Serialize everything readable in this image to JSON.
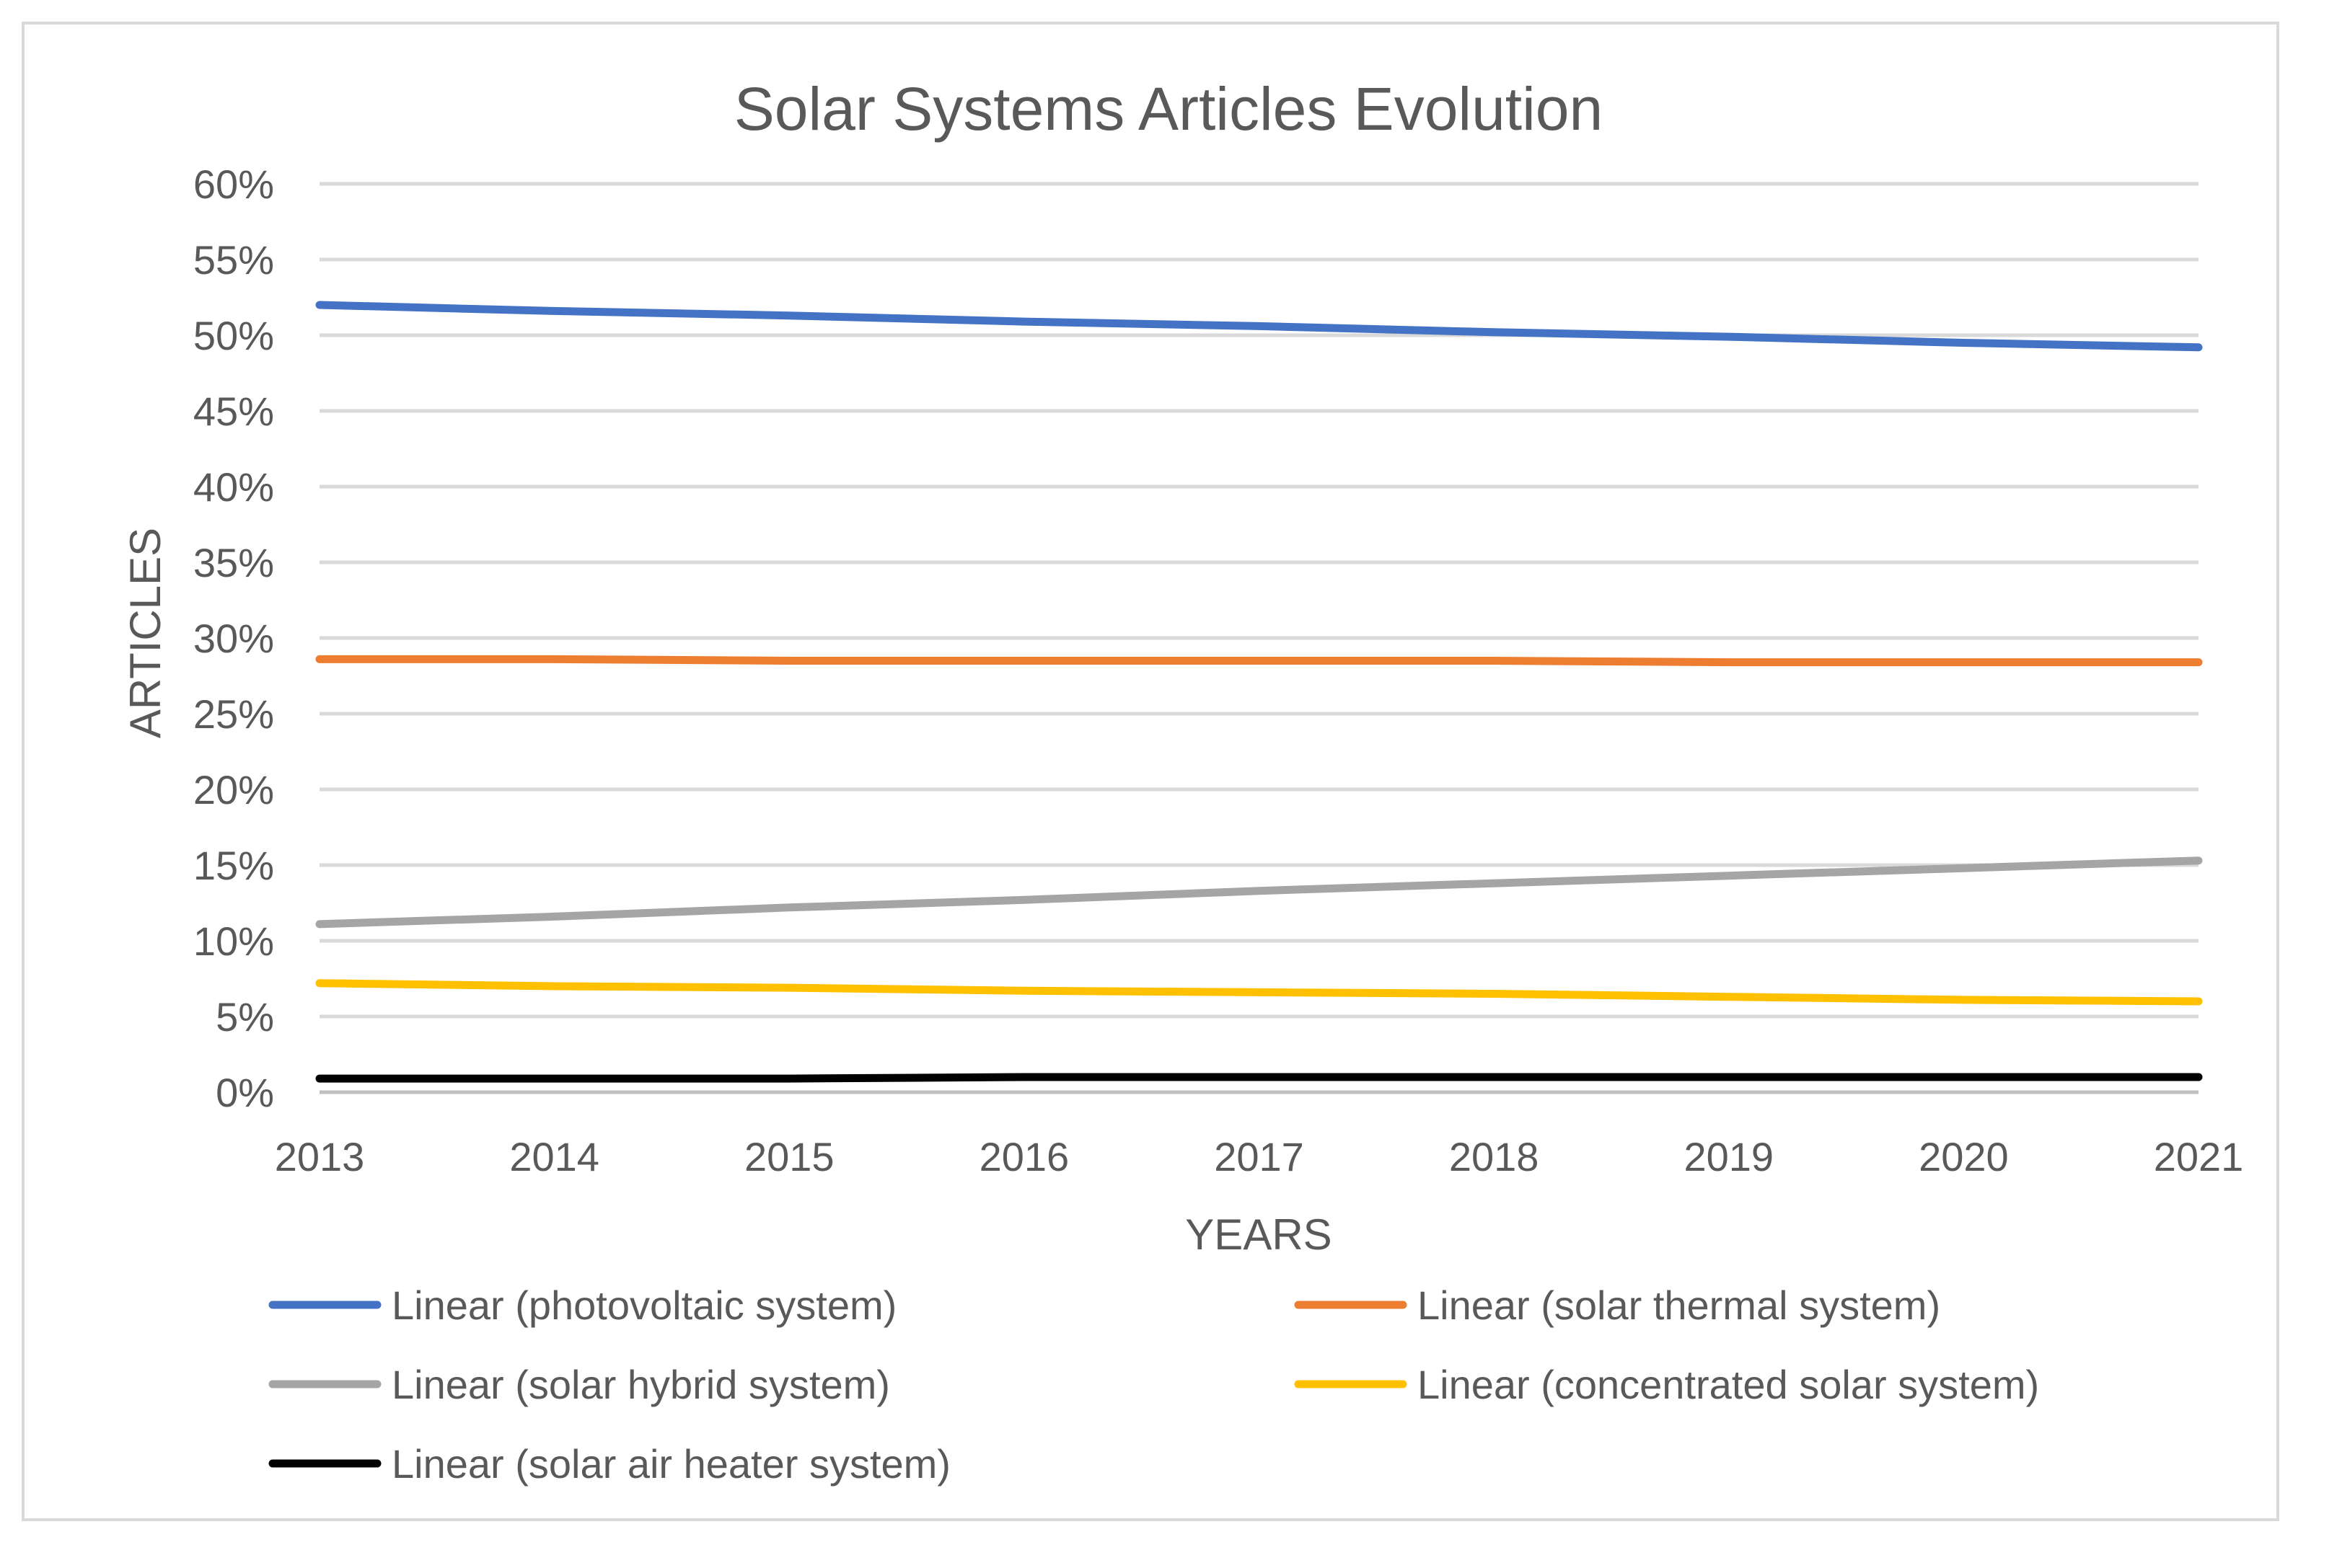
{
  "chart_data": {
    "type": "line",
    "title": "Solar Systems Articles Evolution",
    "xlabel": "YEARS",
    "ylabel": "ARTICLES",
    "categories": [
      "2013",
      "2014",
      "2015",
      "2016",
      "2017",
      "2018",
      "2019",
      "2020",
      "2021"
    ],
    "y_ticks": [
      "0%",
      "5%",
      "10%",
      "15%",
      "20%",
      "25%",
      "30%",
      "35%",
      "40%",
      "45%",
      "50%",
      "55%",
      "60%"
    ],
    "ylim": [
      0,
      60
    ],
    "grid": true,
    "legend_position": "bottom",
    "series": [
      {
        "name": "Linear (photovoltaic system)",
        "color": "#4472c4",
        "values": [
          52.0,
          51.6,
          51.3,
          50.9,
          50.6,
          50.2,
          49.9,
          49.5,
          49.2
        ]
      },
      {
        "name": "Linear (solar thermal system)",
        "color": "#ed7d31",
        "values": [
          28.6,
          28.6,
          28.5,
          28.5,
          28.5,
          28.5,
          28.4,
          28.4,
          28.4
        ]
      },
      {
        "name": "Linear (solar hybrid system)",
        "color": "#a5a5a5",
        "values": [
          11.1,
          11.6,
          12.2,
          12.7,
          13.3,
          13.8,
          14.3,
          14.8,
          15.3
        ]
      },
      {
        "name": "Linear (concentrated solar system)",
        "color": "#ffc000",
        "values": [
          7.2,
          7.0,
          6.9,
          6.7,
          6.6,
          6.5,
          6.3,
          6.1,
          6.0
        ]
      },
      {
        "name": "Linear (solar air heater system)",
        "color": "#000000",
        "values": [
          0.9,
          0.9,
          0.9,
          1.0,
          1.0,
          1.0,
          1.0,
          1.0,
          1.0
        ]
      }
    ]
  }
}
